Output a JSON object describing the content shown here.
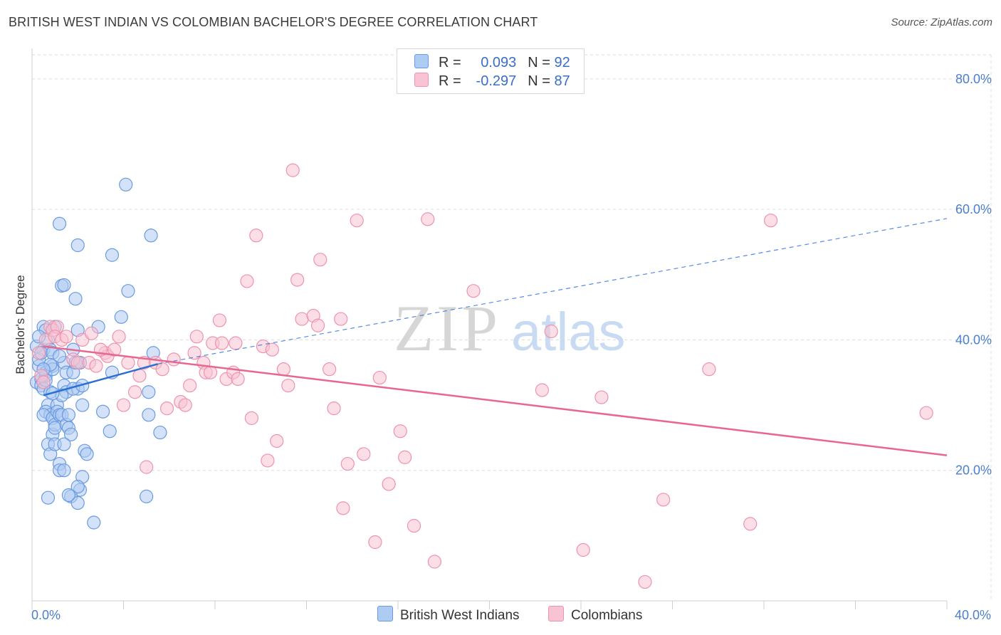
{
  "title": "BRITISH WEST INDIAN VS COLOMBIAN BACHELOR'S DEGREE CORRELATION CHART",
  "source": "Source: ZipAtlas.com",
  "watermark": {
    "zip": "ZIP",
    "atlas": "atlas"
  },
  "legend": {
    "rows": [
      {
        "r_label": "R =",
        "r_value": "0.093",
        "n_label": "N =",
        "n_value": "92"
      },
      {
        "r_label": "R =",
        "r_value": "-0.297",
        "n_label": "N =",
        "n_value": "87"
      }
    ]
  },
  "bottom_legend": {
    "series1": "British West Indians",
    "series2": "Colombians"
  },
  "colors": {
    "blue_fill": "#aecbf2",
    "blue_stroke": "#6a9be0",
    "blue_line": "#2c6fd1",
    "pink_fill": "#f8c3d2",
    "pink_stroke": "#ee93ad",
    "pink_line": "#e8678f",
    "tick": "#4a7fcf",
    "grid": "#dcdcdc"
  },
  "chart_data": {
    "type": "scatter",
    "title": "BRITISH WEST INDIAN VS COLOMBIAN BACHELOR'S DEGREE CORRELATION CHART",
    "xlabel": "",
    "ylabel": "Bachelor's Degree",
    "xlim": [
      0,
      40
    ],
    "ylim": [
      0,
      85
    ],
    "x_tick_labels": [
      {
        "value": 0,
        "label": "0.0%"
      },
      {
        "value": 40,
        "label": "40.0%"
      }
    ],
    "y_tick_labels": [
      {
        "value": 20,
        "label": "20.0%"
      },
      {
        "value": 40,
        "label": "40.0%"
      },
      {
        "value": 60,
        "label": "60.0%"
      },
      {
        "value": 80,
        "label": "80.0%"
      }
    ],
    "series": [
      {
        "name": "British West Indians",
        "R": 0.093,
        "N": 92,
        "trend": {
          "x0": 0.5,
          "y0": 31.5,
          "x1": 5.5,
          "y1": 36.3,
          "dashed_to_x": 40,
          "dashed_to_y": 58.6
        },
        "points": [
          [
            0.2,
            33.5
          ],
          [
            0.3,
            36.0
          ],
          [
            0.4,
            34.0
          ],
          [
            0.5,
            38.5
          ],
          [
            0.6,
            35.0
          ],
          [
            0.3,
            37.0
          ],
          [
            0.4,
            33.0
          ],
          [
            0.5,
            32.5
          ],
          [
            0.6,
            34.5
          ],
          [
            0.2,
            39.0
          ],
          [
            0.5,
            42.0
          ],
          [
            0.6,
            41.5
          ],
          [
            0.7,
            40.0
          ],
          [
            0.8,
            38.5
          ],
          [
            0.9,
            36.0
          ],
          [
            0.9,
            35.5
          ],
          [
            0.8,
            32.0
          ],
          [
            0.7,
            30.0
          ],
          [
            0.6,
            29.0
          ],
          [
            0.8,
            28.5
          ],
          [
            0.9,
            25.5
          ],
          [
            0.7,
            24.0
          ],
          [
            0.8,
            22.5
          ],
          [
            0.5,
            28.5
          ],
          [
            0.9,
            28.0
          ],
          [
            1.0,
            27.0
          ],
          [
            1.0,
            26.5
          ],
          [
            1.1,
            30.0
          ],
          [
            1.1,
            29.0
          ],
          [
            1.2,
            28.5
          ],
          [
            1.0,
            24.0
          ],
          [
            1.2,
            21.0
          ],
          [
            1.2,
            20.0
          ],
          [
            1.4,
            20.0
          ],
          [
            1.3,
            28.5
          ],
          [
            1.4,
            33.0
          ],
          [
            1.5,
            32.0
          ],
          [
            1.5,
            27.0
          ],
          [
            1.6,
            26.5
          ],
          [
            1.6,
            28.5
          ],
          [
            1.7,
            25.5
          ],
          [
            1.4,
            24.0
          ],
          [
            1.4,
            36.5
          ],
          [
            1.5,
            35.0
          ],
          [
            1.8,
            38.5
          ],
          [
            1.8,
            35.0
          ],
          [
            1.9,
            36.5
          ],
          [
            2.0,
            32.5
          ],
          [
            2.1,
            36.5
          ],
          [
            2.0,
            41.5
          ],
          [
            1.3,
            48.3
          ],
          [
            1.4,
            48.4
          ],
          [
            1.9,
            46.3
          ],
          [
            2.2,
            30.0
          ],
          [
            2.3,
            23.0
          ],
          [
            2.4,
            22.5
          ],
          [
            2.2,
            19.0
          ],
          [
            2.1,
            17.0
          ],
          [
            2.0,
            17.5
          ],
          [
            1.7,
            16.0
          ],
          [
            2.0,
            15.0
          ],
          [
            2.7,
            12.0
          ],
          [
            2.9,
            42.0
          ],
          [
            3.1,
            29.0
          ],
          [
            3.4,
            26.0
          ],
          [
            3.5,
            35.0
          ],
          [
            3.5,
            53.0
          ],
          [
            3.9,
            43.5
          ],
          [
            4.2,
            47.5
          ],
          [
            4.1,
            63.8
          ],
          [
            5.2,
            56.0
          ],
          [
            5.3,
            38.0
          ],
          [
            5.1,
            32.0
          ],
          [
            5.1,
            28.5
          ],
          [
            5.6,
            25.8
          ],
          [
            5.0,
            16.0
          ],
          [
            1.2,
            57.8
          ],
          [
            2.0,
            54.5
          ],
          [
            0.7,
            15.8
          ],
          [
            1.6,
            16.2
          ],
          [
            0.4,
            38.0
          ],
          [
            0.9,
            38.0
          ],
          [
            1.8,
            32.5
          ],
          [
            2.2,
            33.0
          ],
          [
            1.3,
            31.5
          ],
          [
            0.9,
            31.8
          ],
          [
            1.0,
            42.0
          ],
          [
            0.6,
            33.8
          ],
          [
            0.8,
            36.2
          ],
          [
            1.2,
            37.5
          ],
          [
            0.3,
            40.5
          ],
          [
            0.5,
            35.5
          ]
        ]
      },
      {
        "name": "Colombians",
        "R": -0.297,
        "N": 87,
        "trend": {
          "x0": 0.5,
          "y0": 39.0,
          "x1": 40.0,
          "y1": 22.3
        },
        "points": [
          [
            0.3,
            38.0
          ],
          [
            0.4,
            34.5
          ],
          [
            0.5,
            33.5
          ],
          [
            0.6,
            40.0
          ],
          [
            0.8,
            42.0
          ],
          [
            0.9,
            41.5
          ],
          [
            1.1,
            42.0
          ],
          [
            1.0,
            40.5
          ],
          [
            1.3,
            40.0
          ],
          [
            1.5,
            40.5
          ],
          [
            1.8,
            37.0
          ],
          [
            2.0,
            36.5
          ],
          [
            2.2,
            40.0
          ],
          [
            2.5,
            36.5
          ],
          [
            2.6,
            41.0
          ],
          [
            2.8,
            36.0
          ],
          [
            3.2,
            38.0
          ],
          [
            3.3,
            37.5
          ],
          [
            3.6,
            38.5
          ],
          [
            3.8,
            40.5
          ],
          [
            4.2,
            36.5
          ],
          [
            4.5,
            32.0
          ],
          [
            4.7,
            34.5
          ],
          [
            4.9,
            36.5
          ],
          [
            5.0,
            20.5
          ],
          [
            4.0,
            30.0
          ],
          [
            5.4,
            36.5
          ],
          [
            5.7,
            35.5
          ],
          [
            5.9,
            29.5
          ],
          [
            6.2,
            37.0
          ],
          [
            6.5,
            30.5
          ],
          [
            6.7,
            30.0
          ],
          [
            6.9,
            33.0
          ],
          [
            7.1,
            38.0
          ],
          [
            7.2,
            40.5
          ],
          [
            7.5,
            36.5
          ],
          [
            7.6,
            35.0
          ],
          [
            7.8,
            35.0
          ],
          [
            7.9,
            39.5
          ],
          [
            8.3,
            39.5
          ],
          [
            8.2,
            43.0
          ],
          [
            8.5,
            34.0
          ],
          [
            8.8,
            35.0
          ],
          [
            8.9,
            39.5
          ],
          [
            9.0,
            34.0
          ],
          [
            9.4,
            49.0
          ],
          [
            9.6,
            28.0
          ],
          [
            9.8,
            56.0
          ],
          [
            10.1,
            39.0
          ],
          [
            10.3,
            21.5
          ],
          [
            10.5,
            38.5
          ],
          [
            10.7,
            24.5
          ],
          [
            11.0,
            35.5
          ],
          [
            11.2,
            33.0
          ],
          [
            11.4,
            66.0
          ],
          [
            11.6,
            49.2
          ],
          [
            11.8,
            43.2
          ],
          [
            12.3,
            43.7
          ],
          [
            12.5,
            42.2
          ],
          [
            12.6,
            52.3
          ],
          [
            13.0,
            35.5
          ],
          [
            13.2,
            29.5
          ],
          [
            13.5,
            43.2
          ],
          [
            13.6,
            14.2
          ],
          [
            13.8,
            21.0
          ],
          [
            14.2,
            58.3
          ],
          [
            14.5,
            22.5
          ],
          [
            15.0,
            9.0
          ],
          [
            15.2,
            34.2
          ],
          [
            15.6,
            17.9
          ],
          [
            16.1,
            26.0
          ],
          [
            16.3,
            22.0
          ],
          [
            16.7,
            11.5
          ],
          [
            17.3,
            58.5
          ],
          [
            17.6,
            6.0
          ],
          [
            19.3,
            47.5
          ],
          [
            22.3,
            32.3
          ],
          [
            22.7,
            41.3
          ],
          [
            24.1,
            7.8
          ],
          [
            24.9,
            31.2
          ],
          [
            26.8,
            2.9
          ],
          [
            27.6,
            15.5
          ],
          [
            29.6,
            35.5
          ],
          [
            31.4,
            11.8
          ],
          [
            32.3,
            58.3
          ],
          [
            39.1,
            28.8
          ],
          [
            3.0,
            38.5
          ]
        ]
      }
    ]
  }
}
